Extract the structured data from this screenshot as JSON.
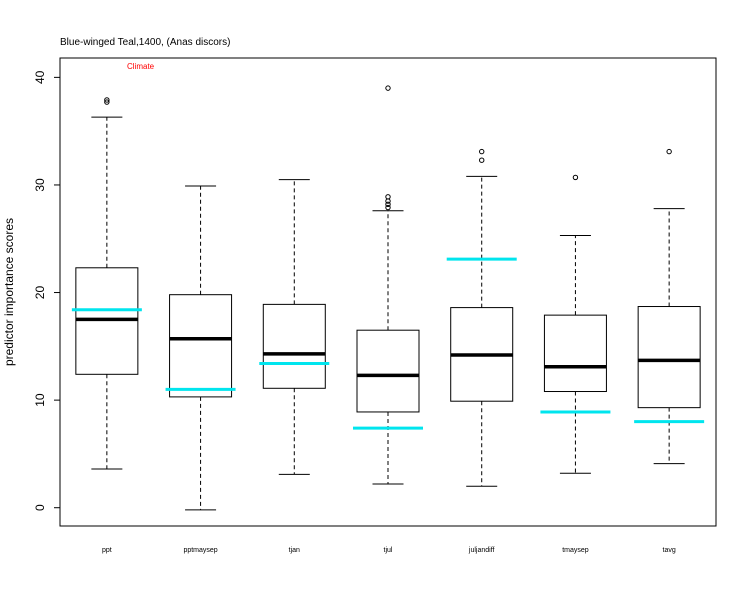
{
  "chart_data": {
    "type": "boxplot",
    "title": "Blue-winged Teal,1400, (Anas discors)",
    "annotation": "Climate",
    "annotation_color": "#ff0000",
    "ylabel": "predictor importance scores",
    "xlabel": "",
    "ylim": [
      -1.7,
      41.8
    ],
    "yticks": [
      0,
      10,
      20,
      30,
      40
    ],
    "categories": [
      "ppt",
      "pptmaysep",
      "tjan",
      "tjul",
      "juljandiff",
      "tmaysep",
      "tavg"
    ],
    "boxes": [
      {
        "whisker_low": 3.6,
        "q1": 12.4,
        "median": 17.5,
        "q3": 22.3,
        "whisker_high": 36.3,
        "outliers": [
          37.7,
          37.9
        ]
      },
      {
        "whisker_low": -0.2,
        "q1": 10.3,
        "median": 15.7,
        "q3": 19.8,
        "whisker_high": 29.9,
        "outliers": []
      },
      {
        "whisker_low": 3.1,
        "q1": 11.1,
        "median": 14.3,
        "q3": 18.9,
        "whisker_high": 30.5,
        "outliers": []
      },
      {
        "whisker_low": 2.2,
        "q1": 8.9,
        "median": 12.3,
        "q3": 16.5,
        "whisker_high": 27.6,
        "outliers": [
          27.9,
          28.2,
          28.5,
          28.9,
          39.0
        ]
      },
      {
        "whisker_low": 2.0,
        "q1": 9.9,
        "median": 14.2,
        "q3": 18.6,
        "whisker_high": 30.8,
        "outliers": [
          32.3,
          33.1
        ]
      },
      {
        "whisker_low": 3.2,
        "q1": 10.8,
        "median": 13.1,
        "q3": 17.9,
        "whisker_high": 25.3,
        "outliers": [
          30.7
        ]
      },
      {
        "whisker_low": 4.1,
        "q1": 9.3,
        "median": 13.7,
        "q3": 18.7,
        "whisker_high": 27.8,
        "outliers": [
          33.1
        ]
      }
    ],
    "reference_series": {
      "color": "#00e5ee",
      "values": [
        18.4,
        11.0,
        13.4,
        7.4,
        23.1,
        8.9,
        8.0
      ]
    },
    "grid": false,
    "legend": "none"
  }
}
